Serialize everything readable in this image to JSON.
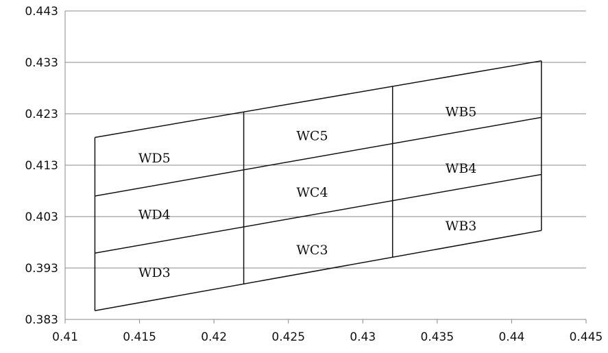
{
  "chart_data": {
    "type": "line",
    "title": "",
    "xlabel": "",
    "ylabel": "",
    "xlim": [
      0.41,
      0.445
    ],
    "ylim": [
      0.383,
      0.443
    ],
    "x_ticks": [
      "0.41",
      "0.415",
      "0.42",
      "0.425",
      "0.43",
      "0.435",
      "0.44",
      "0.445"
    ],
    "y_ticks": [
      "0.443",
      "0.433",
      "0.423",
      "0.413",
      "0.403",
      "0.393",
      "0.383"
    ],
    "grid": "horizontal",
    "legend": "none",
    "colors": {
      "line": "#111111",
      "grid": "#8a8a8a",
      "axis": "#8a8a8a"
    },
    "x_boundaries": [
      0.412,
      0.422,
      0.432,
      0.442
    ],
    "boundary_series": [
      {
        "x": [
          0.412,
          0.442
        ],
        "y": [
          0.3847,
          0.4003
        ]
      },
      {
        "x": [
          0.412,
          0.442
        ],
        "y": [
          0.3959,
          0.4112
        ]
      },
      {
        "x": [
          0.412,
          0.442
        ],
        "y": [
          0.407,
          0.4223
        ]
      },
      {
        "x": [
          0.412,
          0.442
        ],
        "y": [
          0.4184,
          0.4333
        ]
      }
    ],
    "regions": [
      {
        "label": "WD5",
        "x": 0.416,
        "y": 0.4145
      },
      {
        "label": "WD4",
        "x": 0.416,
        "y": 0.4035
      },
      {
        "label": "WD3",
        "x": 0.416,
        "y": 0.3922
      },
      {
        "label": "WC5",
        "x": 0.4266,
        "y": 0.4188
      },
      {
        "label": "WC4",
        "x": 0.4266,
        "y": 0.4078
      },
      {
        "label": "WC3",
        "x": 0.4266,
        "y": 0.3966
      },
      {
        "label": "WB5",
        "x": 0.4366,
        "y": 0.4235
      },
      {
        "label": "WB4",
        "x": 0.4366,
        "y": 0.4125
      },
      {
        "label": "WB3",
        "x": 0.4366,
        "y": 0.4013
      }
    ]
  }
}
